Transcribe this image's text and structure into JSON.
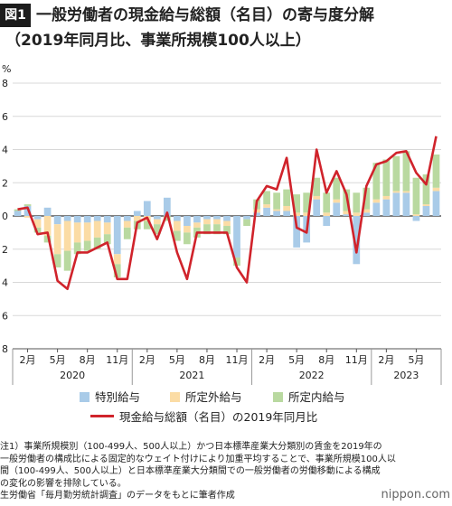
{
  "figure": {
    "badge": "図1",
    "title": "一般労働者の現金給与総額（名目）の寄与度分解",
    "subtitle": "（2019年同月比、事業所規模100人以上）"
  },
  "chart_data": {
    "type": "bar",
    "y_unit": "%",
    "ylim": [
      -8,
      8
    ],
    "y_ticks": [
      8,
      6,
      4,
      2,
      0,
      -2,
      -4,
      -6,
      -8
    ],
    "y_tick_labels": [
      "8",
      "6",
      "4",
      "2",
      "0",
      "2",
      "4",
      "6",
      "8"
    ],
    "grid": true,
    "stacked": true,
    "categories": [
      "2020-01",
      "2020-02",
      "2020-03",
      "2020-04",
      "2020-05",
      "2020-06",
      "2020-07",
      "2020-08",
      "2020-09",
      "2020-10",
      "2020-11",
      "2020-12",
      "2021-01",
      "2021-02",
      "2021-03",
      "2021-04",
      "2021-05",
      "2021-06",
      "2021-07",
      "2021-08",
      "2021-09",
      "2021-10",
      "2021-11",
      "2021-12",
      "2022-01",
      "2022-02",
      "2022-03",
      "2022-04",
      "2022-05",
      "2022-06",
      "2022-07",
      "2022-08",
      "2022-09",
      "2022-10",
      "2022-11",
      "2022-12",
      "2023-01",
      "2023-02",
      "2023-03",
      "2023-04",
      "2023-05",
      "2023-06",
      "2023-07"
    ],
    "x_month_labels": [
      {
        "index": 1,
        "label": "2月"
      },
      {
        "index": 4,
        "label": "5月"
      },
      {
        "index": 7,
        "label": "8月"
      },
      {
        "index": 10,
        "label": "11月"
      },
      {
        "index": 13,
        "label": "2月"
      },
      {
        "index": 16,
        "label": "5月"
      },
      {
        "index": 19,
        "label": "8月"
      },
      {
        "index": 22,
        "label": "11月"
      },
      {
        "index": 25,
        "label": "2月"
      },
      {
        "index": 28,
        "label": "5月"
      },
      {
        "index": 31,
        "label": "8月"
      },
      {
        "index": 34,
        "label": "11月"
      },
      {
        "index": 37,
        "label": "2月"
      },
      {
        "index": 40,
        "label": "5月"
      }
    ],
    "x_year_labels": [
      {
        "start": 0,
        "end": 11,
        "label": "2020"
      },
      {
        "start": 12,
        "end": 23,
        "label": "2021"
      },
      {
        "start": 24,
        "end": 35,
        "label": "2022"
      },
      {
        "start": 36,
        "end": 42,
        "label": "2023"
      }
    ],
    "series": [
      {
        "name": "特別給与",
        "kind": "bar",
        "color": "#a9cbe8",
        "values": [
          0.3,
          0.6,
          -0.2,
          0.5,
          -0.5,
          -0.3,
          -0.4,
          -0.4,
          -0.3,
          -0.4,
          -2.3,
          -0.3,
          0.3,
          0.9,
          -0.2,
          1.1,
          -0.3,
          -0.6,
          -0.4,
          -0.2,
          -0.2,
          -0.3,
          -2.5,
          -0.2,
          0.2,
          0.5,
          0.3,
          0.3,
          -1.9,
          -1.6,
          1.0,
          -0.6,
          0.8,
          0.1,
          -2.9,
          0.2,
          0.8,
          1.0,
          1.4,
          1.4,
          -0.3,
          0.6,
          1.5
        ]
      },
      {
        "name": "所定外給与",
        "kind": "bar",
        "color": "#fbdca5",
        "values": [
          0.0,
          -0.1,
          -0.5,
          -1.2,
          -1.8,
          -1.8,
          -1.2,
          -1.1,
          -1.0,
          -0.7,
          -0.6,
          -0.4,
          -0.3,
          -0.3,
          -0.3,
          0.0,
          -0.6,
          -0.4,
          -0.3,
          -0.3,
          -0.3,
          -0.3,
          0.0,
          0.0,
          0.2,
          0.2,
          0.1,
          0.3,
          0.2,
          0.2,
          0.2,
          0.2,
          0.2,
          0.2,
          0.2,
          0.2,
          0.2,
          0.2,
          0.1,
          0.1,
          0.1,
          0.1,
          0.2
        ]
      },
      {
        "name": "所定内給与",
        "kind": "bar",
        "color": "#b9d9a0",
        "values": [
          0.1,
          0.1,
          -0.3,
          -0.4,
          -0.8,
          -1.2,
          -0.7,
          -0.6,
          -0.7,
          -0.6,
          -0.8,
          -0.7,
          -0.5,
          -0.5,
          -0.6,
          -0.3,
          -0.6,
          -0.7,
          -0.6,
          -0.6,
          -0.6,
          -0.5,
          -0.5,
          -0.4,
          0.6,
          0.8,
          1.0,
          1.0,
          1.1,
          1.2,
          1.1,
          1.2,
          1.3,
          1.3,
          1.2,
          1.3,
          2.2,
          2.2,
          2.1,
          2.4,
          2.2,
          1.8,
          2.0
        ]
      },
      {
        "name": "現金給与総額（名目）の2019年同月比",
        "kind": "line",
        "color": "#d0232b",
        "values": [
          0.4,
          0.5,
          -1.1,
          -1.0,
          -3.9,
          -4.4,
          -2.2,
          -2.2,
          -1.9,
          -1.6,
          -3.8,
          -3.8,
          -0.4,
          -0.1,
          -1.4,
          0.2,
          -2.2,
          -3.8,
          -1.0,
          -1.0,
          -1.0,
          -1.0,
          -3.1,
          -4.0,
          0.9,
          1.8,
          1.6,
          3.5,
          -0.7,
          -1.0,
          4.0,
          1.4,
          2.7,
          1.3,
          -2.2,
          1.8,
          3.1,
          3.3,
          3.8,
          3.9,
          2.6,
          1.9,
          4.8
        ]
      }
    ]
  },
  "legend": {
    "items": [
      {
        "label": "特別給与",
        "color": "#a9cbe8"
      },
      {
        "label": "所定外給与",
        "color": "#fbdca5"
      },
      {
        "label": "所定内給与",
        "color": "#b9d9a0"
      }
    ],
    "line_item": {
      "label": "現金給与総額（名目）の2019年同月比",
      "color": "#d0232b"
    }
  },
  "notes": [
    "注1）事業所規模別（100-499人、500人以上）かつ日本標準産業大分類別の賃金を2019年の",
    "一般労働者の構成比による固定的なウェイト付けにより加重平均することで、事業所規模100人以",
    "間（100-499人、500人以上）と日本標準産業大分類間での一般労働者の労働移動による構成",
    "の変化の影響を排除している。",
    "生労働省「毎月勤労統計調査」のデータをもとに筆者作成"
  ],
  "brand": "nippon.com"
}
